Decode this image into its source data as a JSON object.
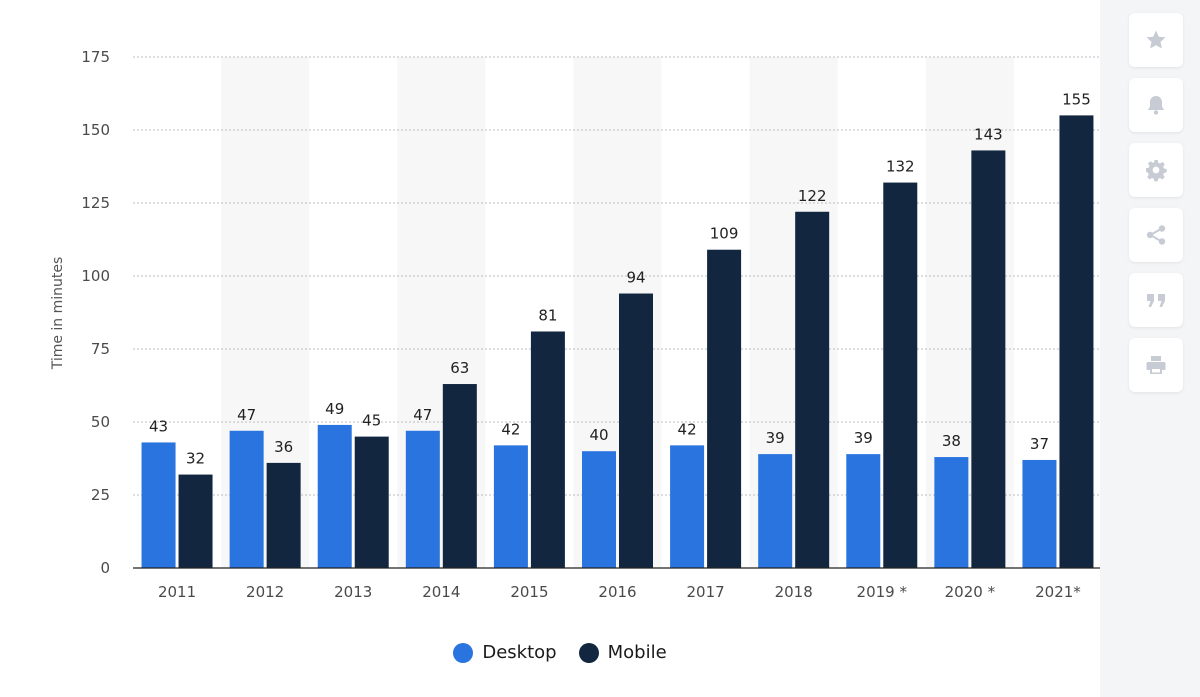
{
  "colors": {
    "desktop": "#2a74df",
    "mobile": "#13263f",
    "band": "#f7f7f8",
    "grid": "#b8bcc4",
    "toolbar_icon": "#c7cbd3"
  },
  "toolbar": {
    "buttons": [
      {
        "icon": "star-icon"
      },
      {
        "icon": "bell-icon"
      },
      {
        "icon": "gear-icon"
      },
      {
        "icon": "share-icon"
      },
      {
        "icon": "quote-icon"
      },
      {
        "icon": "print-icon"
      }
    ]
  },
  "chart_data": {
    "type": "bar",
    "title": "",
    "xlabel": "",
    "ylabel": "Time in minutes",
    "ylim": [
      0,
      175
    ],
    "yticks": [
      0,
      25,
      50,
      75,
      100,
      125,
      150,
      175
    ],
    "grid": true,
    "legend_position": "bottom-center",
    "categories": [
      "2011",
      "2012",
      "2013",
      "2014",
      "2015",
      "2016",
      "2017",
      "2018",
      "2019 *",
      "2020 *",
      "2021*"
    ],
    "series": [
      {
        "name": "Desktop",
        "values": [
          43,
          47,
          49,
          47,
          42,
          40,
          42,
          39,
          39,
          38,
          37
        ]
      },
      {
        "name": "Mobile",
        "values": [
          32,
          36,
          45,
          63,
          81,
          94,
          109,
          122,
          132,
          143,
          155
        ]
      }
    ]
  }
}
